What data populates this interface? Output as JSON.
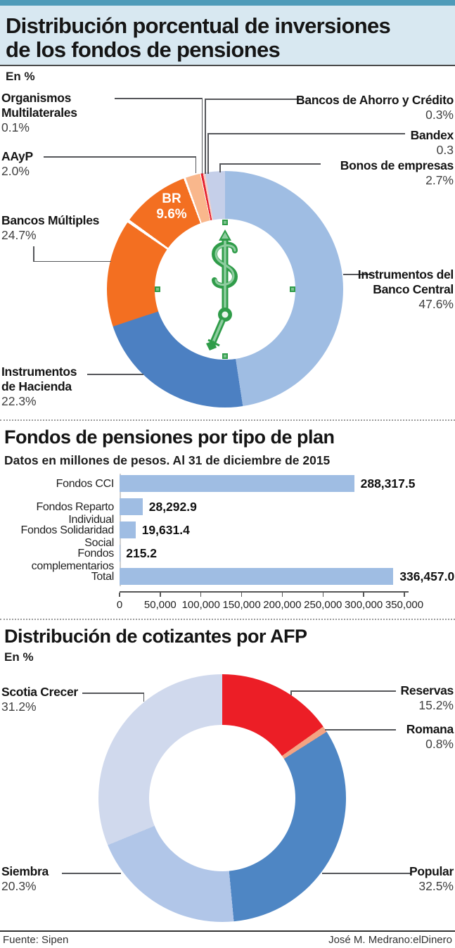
{
  "header": {
    "title_line1": "Distribución porcentual de inversiones",
    "title_line2": "de los fondos de pensiones"
  },
  "chart1_labels": {
    "om": {
      "name": "Organismos Multilaterales",
      "value": "0.1%"
    },
    "aayp": {
      "name": "AAyP",
      "value": "2.0%"
    },
    "bm": {
      "name": "Bancos Múltiples",
      "value": "24.7%"
    },
    "hacienda": {
      "name": "Instrumentos de Hacienda",
      "value": "22.3%"
    },
    "bc": {
      "name": "Instrumentos del Banco Central",
      "value": "47.6%"
    },
    "bayc": {
      "name": "Bancos de Ahorro y Crédito",
      "value": "0.3%"
    },
    "bandex": {
      "name": "Bandex",
      "value": "0.3"
    },
    "bonos": {
      "name": "Bonos de empresas",
      "value": "2.7%"
    },
    "br": {
      "name": "BR",
      "value": "9.6%"
    }
  },
  "chart3_labels": {
    "scotia": {
      "name": "Scotia Crecer",
      "value": "31.2%"
    },
    "reservas": {
      "name": "Reservas",
      "value": "15.2%"
    },
    "romana": {
      "name": "Romana",
      "value": "0.8%"
    },
    "siembra": {
      "name": "Siembra",
      "value": "20.3%"
    },
    "popular": {
      "name": "Popular",
      "value": "32.5%"
    }
  },
  "icons": {
    "center_icon": "dollar-clock-icon"
  },
  "footer": {
    "source": "Fuente: Sipen",
    "credit": "José M. Medrano:elDinero"
  },
  "chart_data": [
    {
      "type": "pie",
      "title": "Distribución porcentual de inversiones de los fondos de pensiones",
      "unit": "En %",
      "labels": [
        "Instrumentos del Banco Central",
        "Instrumentos de Hacienda",
        "Bancos Múltiples",
        "AAyP",
        "Organismos Multilaterales",
        "Bancos de Ahorro y Crédito",
        "Bandex",
        "Bonos de empresas"
      ],
      "values": [
        47.6,
        22.3,
        24.7,
        2.0,
        0.1,
        0.3,
        0.3,
        2.7
      ],
      "note": "BR 9.6% se muestra como subsegmento de Bancos Múltiples (24.7%)",
      "render_segments": [
        {
          "label": "Instrumentos del Banco Central",
          "pct": 47.6,
          "color": "#9FBDE3"
        },
        {
          "label": "Bancos de Ahorro y Crédito",
          "pct": 0.0,
          "color": "#9FBDE3"
        },
        {
          "label": "Instrumentos de Hacienda",
          "pct": 22.3,
          "color": "#4C80C2"
        },
        {
          "label": "Bancos Múltiples",
          "pct": 15.1,
          "color": "#F36F21",
          "divider": 1.6
        },
        {
          "label": "BR",
          "pct": 9.6,
          "color": "#F36F21",
          "divider": 1.1
        },
        {
          "label": "AAyP",
          "pct": 2.0,
          "color": "#F9B78C"
        },
        {
          "label": "Organismos Multilaterales",
          "pct": 0.1,
          "color": "#FFFFFF"
        },
        {
          "label": "Bancos de Ahorro y Crédito",
          "pct": 0.3,
          "color": "#E7202E"
        },
        {
          "label": "Bandex",
          "pct": 0.3,
          "color": "#F5CFC8"
        },
        {
          "label": "Bonos de empresas",
          "pct": 2.7,
          "color": "#C5CFE9"
        }
      ]
    },
    {
      "type": "bar",
      "title": "Fondos de pensiones por tipo de plan",
      "subtitle": "Datos en millones de pesos. Al 31 de diciembre de 2015",
      "categories": [
        "Fondos CCI",
        "Fondos Reparto Individual",
        "Fondos Solidaridad Social",
        "Fondos complementarios",
        "Total"
      ],
      "values": [
        288317.5,
        28292.9,
        19631.4,
        215.2,
        336457.0
      ],
      "value_labels": [
        "288,317.5",
        "28,292.9",
        "19,631.4",
        "215.2",
        "336,457.0"
      ],
      "xlim": [
        0,
        350000
      ],
      "xticks": [
        "0",
        "50,000",
        "100,000",
        "150,000",
        "200,000",
        "250,000",
        "300,000",
        "350,000"
      ],
      "bar_color": "#9FBDE3"
    },
    {
      "type": "pie",
      "title": "Distribución de cotizantes por AFP",
      "unit": "En %",
      "labels": [
        "Reservas",
        "Romana",
        "Popular",
        "Siembra",
        "Scotia Crecer"
      ],
      "values": [
        15.2,
        0.8,
        32.5,
        20.3,
        31.2
      ],
      "render_segments": [
        {
          "label": "Reservas",
          "pct": 15.2,
          "color": "#EC1E26"
        },
        {
          "label": "Romana",
          "pct": 0.8,
          "color": "#F3A383"
        },
        {
          "label": "Popular",
          "pct": 32.5,
          "color": "#4E86C4"
        },
        {
          "label": "Siembra",
          "pct": 20.3,
          "color": "#B1C6E8"
        },
        {
          "label": "Scotia Crecer",
          "pct": 31.2,
          "color": "#D0D9ED"
        }
      ]
    }
  ]
}
